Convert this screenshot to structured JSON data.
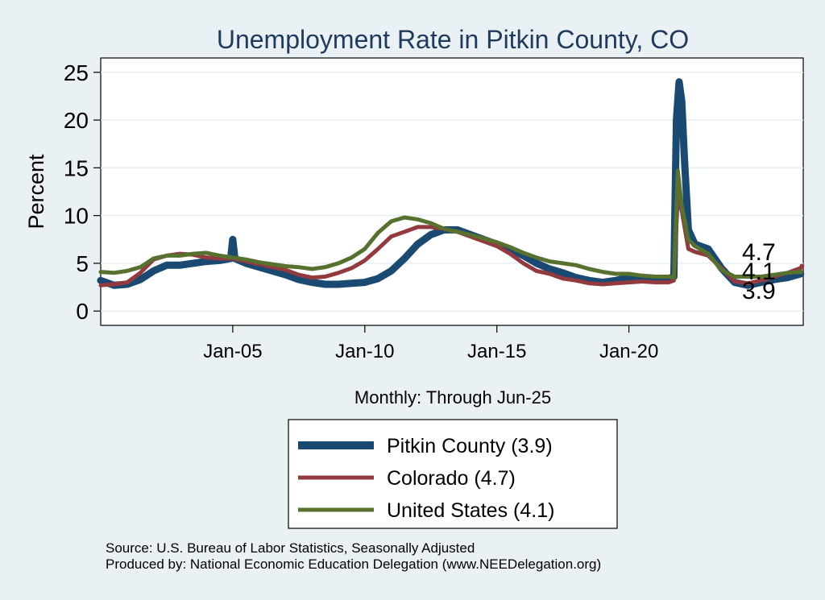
{
  "chart_data": {
    "type": "line",
    "title": "Unemployment Rate in Pitkin  County, CO",
    "xlabel": "Monthly: Through Jun-25",
    "ylabel": "Percent",
    "xlim": [
      2000,
      2026.6
    ],
    "ylim": [
      -1.5,
      26.5
    ],
    "yticks": [
      0,
      5,
      10,
      15,
      20,
      25
    ],
    "xticks": [
      {
        "label": "Jan-05",
        "value": 2005
      },
      {
        "label": "Jan-10",
        "value": 2010
      },
      {
        "label": "Jan-15",
        "value": 2015
      },
      {
        "label": "Jan-20",
        "value": 2020
      }
    ],
    "grid": true,
    "legend_position": "bottom",
    "series": [
      {
        "name": "Pitkin  County",
        "legend_label": "Pitkin  County (3.9)",
        "color": "#1a4a72",
        "width": "thick",
        "end_label": "3.9",
        "points": [
          [
            2000.0,
            3.2
          ],
          [
            2000.5,
            2.7
          ],
          [
            2001.0,
            2.8
          ],
          [
            2001.5,
            3.3
          ],
          [
            2002.0,
            4.2
          ],
          [
            2002.5,
            4.8
          ],
          [
            2003.0,
            4.8
          ],
          [
            2003.5,
            5.0
          ],
          [
            2004.0,
            5.2
          ],
          [
            2004.5,
            5.3
          ],
          [
            2004.92,
            5.5
          ],
          [
            2005.0,
            7.5
          ],
          [
            2005.08,
            5.5
          ],
          [
            2005.5,
            5.0
          ],
          [
            2006.0,
            4.6
          ],
          [
            2006.5,
            4.2
          ],
          [
            2007.0,
            3.8
          ],
          [
            2007.5,
            3.3
          ],
          [
            2008.0,
            3.0
          ],
          [
            2008.5,
            2.8
          ],
          [
            2009.0,
            2.8
          ],
          [
            2009.5,
            2.9
          ],
          [
            2010.0,
            3.0
          ],
          [
            2010.5,
            3.4
          ],
          [
            2011.0,
            4.2
          ],
          [
            2011.5,
            5.5
          ],
          [
            2012.0,
            7.0
          ],
          [
            2012.5,
            8.0
          ],
          [
            2013.0,
            8.5
          ],
          [
            2013.5,
            8.5
          ],
          [
            2014.0,
            8.0
          ],
          [
            2014.5,
            7.5
          ],
          [
            2015.0,
            7.0
          ],
          [
            2015.5,
            6.5
          ],
          [
            2016.0,
            5.8
          ],
          [
            2016.5,
            5.0
          ],
          [
            2017.0,
            4.4
          ],
          [
            2017.5,
            4.0
          ],
          [
            2018.0,
            3.5
          ],
          [
            2018.5,
            3.2
          ],
          [
            2019.0,
            3.0
          ],
          [
            2019.5,
            3.2
          ],
          [
            2020.0,
            3.5
          ],
          [
            2020.5,
            3.5
          ],
          [
            2021.0,
            3.4
          ],
          [
            2021.5,
            3.4
          ],
          [
            2021.7,
            3.6
          ],
          [
            2021.8,
            20.0
          ],
          [
            2021.9,
            24.0
          ],
          [
            2022.0,
            22.0
          ],
          [
            2022.1,
            16.0
          ],
          [
            2022.25,
            8.5
          ],
          [
            2022.5,
            7.0
          ],
          [
            2023.0,
            6.5
          ],
          [
            2023.5,
            4.5
          ],
          [
            2024.0,
            3.0
          ],
          [
            2024.5,
            2.7
          ],
          [
            2025.0,
            3.0
          ],
          [
            2025.5,
            3.3
          ],
          [
            2026.0,
            3.5
          ],
          [
            2026.5,
            3.9
          ]
        ]
      },
      {
        "name": "Colorado",
        "legend_label": "Colorado (4.7)",
        "color": "#923a3e",
        "width": "medium",
        "end_label": "4.7",
        "points": [
          [
            2000.0,
            2.7
          ],
          [
            2000.5,
            2.8
          ],
          [
            2001.0,
            3.0
          ],
          [
            2001.5,
            4.0
          ],
          [
            2002.0,
            5.4
          ],
          [
            2002.5,
            5.8
          ],
          [
            2003.0,
            6.0
          ],
          [
            2003.5,
            5.9
          ],
          [
            2004.0,
            5.6
          ],
          [
            2004.5,
            5.5
          ],
          [
            2005.0,
            5.5
          ],
          [
            2005.5,
            5.2
          ],
          [
            2006.0,
            4.9
          ],
          [
            2006.5,
            4.6
          ],
          [
            2007.0,
            4.3
          ],
          [
            2007.5,
            3.8
          ],
          [
            2008.0,
            3.5
          ],
          [
            2008.5,
            3.6
          ],
          [
            2009.0,
            4.0
          ],
          [
            2009.5,
            4.5
          ],
          [
            2010.0,
            5.3
          ],
          [
            2010.5,
            6.5
          ],
          [
            2011.0,
            7.8
          ],
          [
            2011.5,
            8.3
          ],
          [
            2012.0,
            8.8
          ],
          [
            2012.5,
            8.8
          ],
          [
            2013.0,
            8.6
          ],
          [
            2013.5,
            8.3
          ],
          [
            2014.0,
            7.8
          ],
          [
            2014.5,
            7.3
          ],
          [
            2015.0,
            6.8
          ],
          [
            2015.5,
            6.0
          ],
          [
            2016.0,
            5.0
          ],
          [
            2016.5,
            4.2
          ],
          [
            2017.0,
            3.9
          ],
          [
            2017.5,
            3.4
          ],
          [
            2018.0,
            3.2
          ],
          [
            2018.5,
            2.9
          ],
          [
            2019.0,
            2.8
          ],
          [
            2019.5,
            2.9
          ],
          [
            2020.0,
            3.0
          ],
          [
            2020.5,
            3.1
          ],
          [
            2021.0,
            3.0
          ],
          [
            2021.5,
            3.0
          ],
          [
            2021.7,
            3.2
          ],
          [
            2021.85,
            12.0
          ],
          [
            2021.9,
            11.5
          ],
          [
            2022.0,
            10.5
          ],
          [
            2022.25,
            6.5
          ],
          [
            2022.5,
            6.2
          ],
          [
            2023.0,
            5.8
          ],
          [
            2023.5,
            4.5
          ],
          [
            2024.0,
            3.1
          ],
          [
            2024.5,
            2.9
          ],
          [
            2025.0,
            3.2
          ],
          [
            2025.5,
            3.6
          ],
          [
            2026.0,
            4.0
          ],
          [
            2026.5,
            4.5
          ],
          [
            2026.55,
            4.7
          ]
        ]
      },
      {
        "name": "United States",
        "legend_label": "United States (4.1)",
        "color": "#56722e",
        "width": "medium",
        "end_label": "4.1",
        "points": [
          [
            2000.0,
            4.1
          ],
          [
            2000.5,
            4.0
          ],
          [
            2001.0,
            4.2
          ],
          [
            2001.5,
            4.6
          ],
          [
            2002.0,
            5.5
          ],
          [
            2002.5,
            5.8
          ],
          [
            2003.0,
            5.8
          ],
          [
            2003.5,
            6.0
          ],
          [
            2004.0,
            6.1
          ],
          [
            2004.5,
            5.8
          ],
          [
            2005.0,
            5.6
          ],
          [
            2005.5,
            5.4
          ],
          [
            2006.0,
            5.1
          ],
          [
            2006.5,
            4.9
          ],
          [
            2007.0,
            4.7
          ],
          [
            2007.5,
            4.6
          ],
          [
            2008.0,
            4.4
          ],
          [
            2008.5,
            4.6
          ],
          [
            2009.0,
            5.0
          ],
          [
            2009.5,
            5.6
          ],
          [
            2010.0,
            6.5
          ],
          [
            2010.5,
            8.2
          ],
          [
            2011.0,
            9.4
          ],
          [
            2011.5,
            9.8
          ],
          [
            2012.0,
            9.6
          ],
          [
            2012.5,
            9.2
          ],
          [
            2013.0,
            8.6
          ],
          [
            2013.5,
            8.3
          ],
          [
            2014.0,
            8.0
          ],
          [
            2014.5,
            7.6
          ],
          [
            2015.0,
            7.2
          ],
          [
            2015.5,
            6.7
          ],
          [
            2016.0,
            6.1
          ],
          [
            2016.5,
            5.6
          ],
          [
            2017.0,
            5.2
          ],
          [
            2017.5,
            5.0
          ],
          [
            2018.0,
            4.8
          ],
          [
            2018.5,
            4.4
          ],
          [
            2019.0,
            4.1
          ],
          [
            2019.5,
            3.9
          ],
          [
            2020.0,
            3.9
          ],
          [
            2020.5,
            3.7
          ],
          [
            2021.0,
            3.6
          ],
          [
            2021.5,
            3.6
          ],
          [
            2021.7,
            3.5
          ],
          [
            2021.85,
            14.7
          ],
          [
            2021.9,
            13.5
          ],
          [
            2022.0,
            11.0
          ],
          [
            2022.25,
            7.5
          ],
          [
            2022.5,
            6.8
          ],
          [
            2023.0,
            6.0
          ],
          [
            2023.5,
            4.3
          ],
          [
            2024.0,
            3.6
          ],
          [
            2024.5,
            3.6
          ],
          [
            2025.0,
            3.6
          ],
          [
            2025.5,
            3.8
          ],
          [
            2026.0,
            4.0
          ],
          [
            2026.5,
            4.1
          ]
        ]
      }
    ]
  },
  "footer": {
    "source": "Source: U.S. Bureau of Labor Statistics, Seasonally Adjusted",
    "produced_by": "Produced by: National Economic Education Delegation (www.NEEDelegation.org)"
  },
  "colors": {
    "background": "#e9f1f5",
    "plot_background": "#ffffff",
    "title": "#1f3a5c"
  }
}
